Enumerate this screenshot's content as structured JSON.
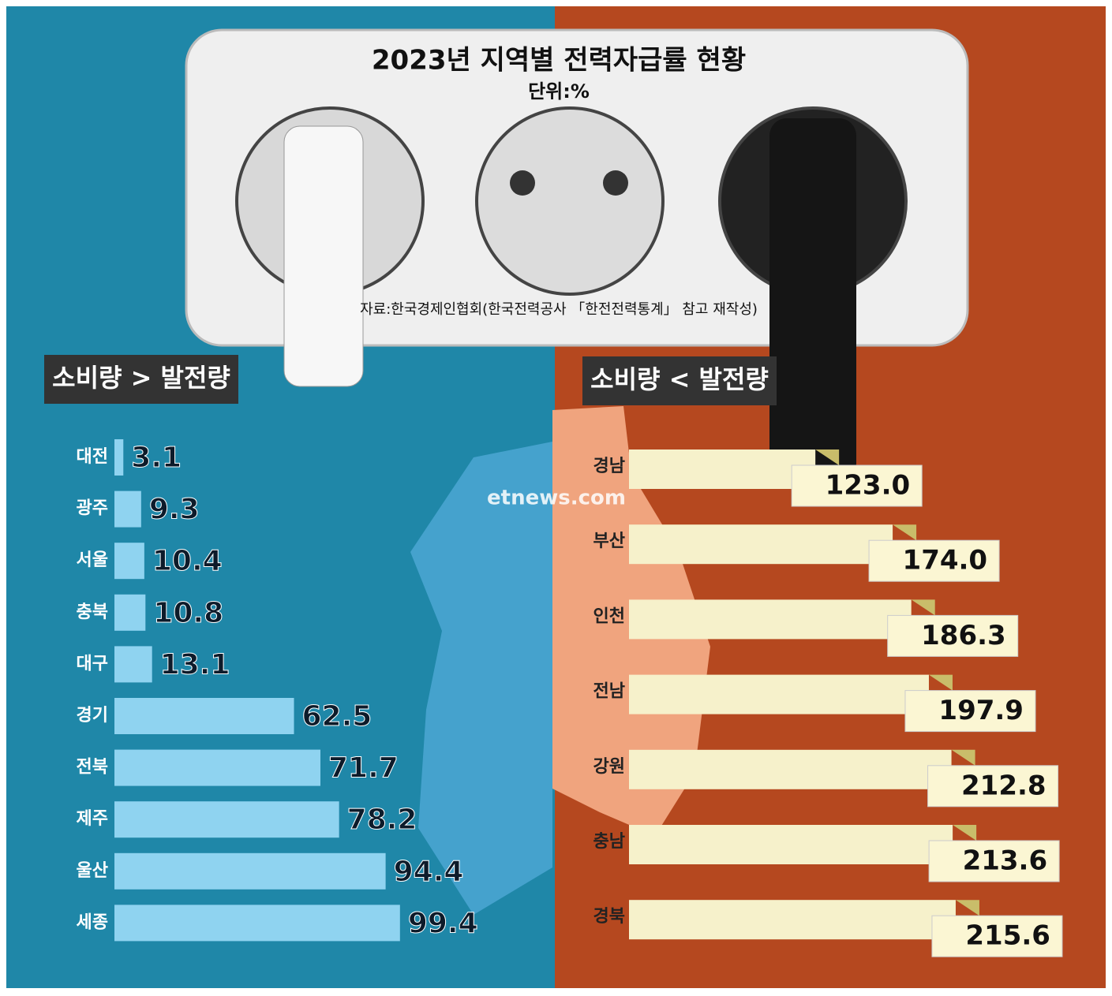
{
  "title": "2023년 지역별 전력자급률 현황",
  "subtitle": "단위:%",
  "source": "자료:한국경제인협회(한국전력공사 「한전전력통계」 참고 재작성)",
  "watermark": "etnews.com",
  "chart_data": [
    {
      "type": "bar",
      "title": "소비량 > 발전량",
      "categories": [
        "대전",
        "광주",
        "서울",
        "충북",
        "대구",
        "경기",
        "전북",
        "제주",
        "울산",
        "세종"
      ],
      "values": [
        3.1,
        9.3,
        10.4,
        10.8,
        13.1,
        62.5,
        71.7,
        78.2,
        94.4,
        99.4
      ],
      "color": "#8fd3f0"
    },
    {
      "type": "bar",
      "title": "소비량 < 발전량",
      "categories": [
        "경남",
        "부산",
        "인천",
        "전남",
        "강원",
        "충남",
        "경북"
      ],
      "values": [
        123.0,
        174.0,
        186.3,
        197.9,
        212.8,
        213.6,
        215.6
      ],
      "value_labels": [
        "123.0",
        "174.0",
        "186.3",
        "197.9",
        "212.8",
        "213.6",
        "215.6"
      ],
      "color": "#f6f1cb"
    }
  ]
}
